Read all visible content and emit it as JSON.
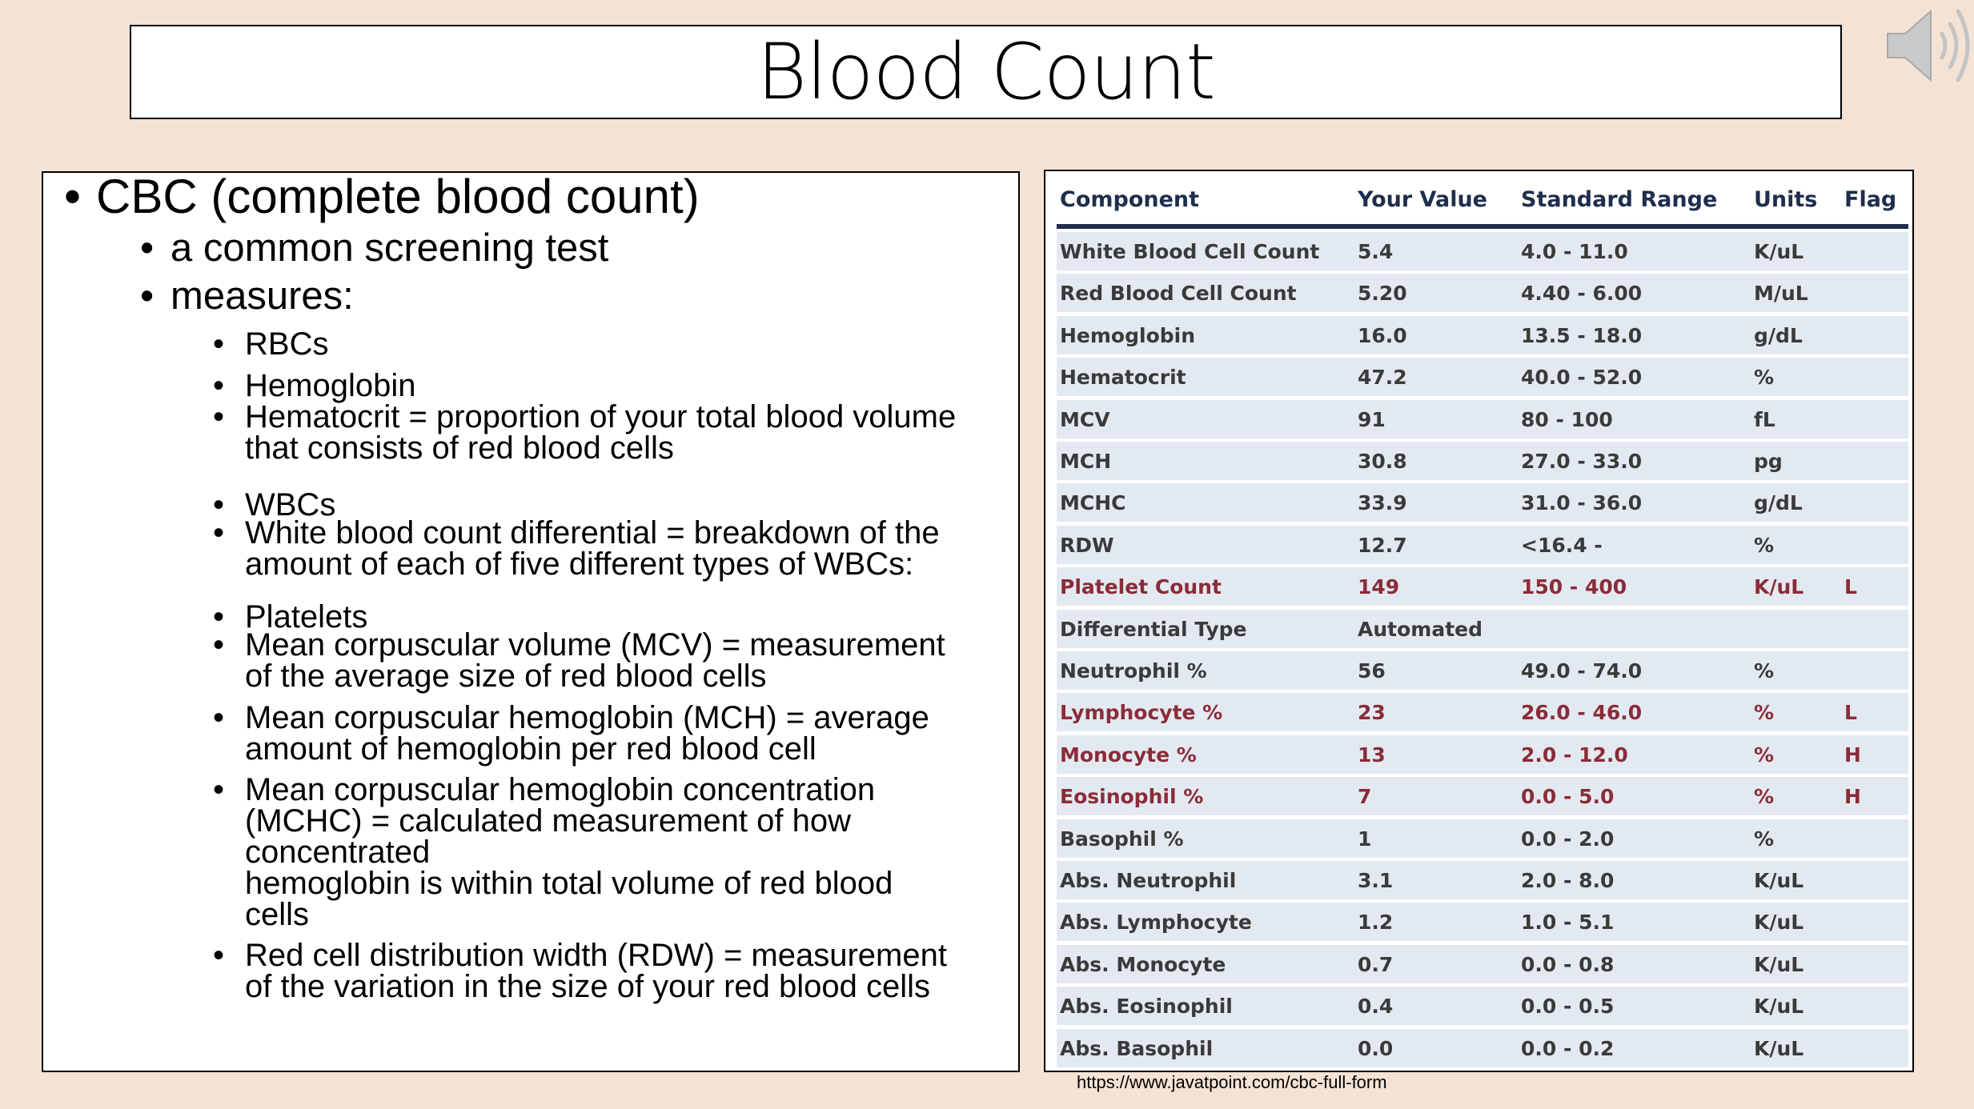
{
  "slide": {
    "title": "Blood Count",
    "source_url": "https://www.javatpoint.com/cbc-full-form",
    "speaker_icon": "speaker-audio-icon",
    "background_color": "#f4e2d4"
  },
  "outline": {
    "bullet": "•",
    "items": [
      {
        "level": 1,
        "lines": [
          "CBC (complete blood count)"
        ]
      },
      {
        "level": 2,
        "lines": [
          " a common screening test"
        ]
      },
      {
        "level": 2,
        "lines": [
          "measures:"
        ]
      },
      {
        "level": 3,
        "lines": [
          "RBCs"
        ]
      },
      {
        "level": 3,
        "lines": [
          "Hemoglobin"
        ]
      },
      {
        "level": 3,
        "lines": [
          "Hematocrit = proportion of your total blood volume",
          "that consists of red blood cells"
        ]
      },
      {
        "level": 3,
        "lines": [
          "WBCs"
        ]
      },
      {
        "level": 3,
        "lines": [
          "White blood count differential = breakdown of the",
          "amount of each of five different types of WBCs:"
        ]
      },
      {
        "level": 3,
        "lines": [
          "Platelets"
        ]
      },
      {
        "level": 3,
        "lines": [
          "Mean corpuscular volume (MCV) = measurement",
          "of the average size of red blood cells"
        ]
      },
      {
        "level": 3,
        "lines": [
          "Mean corpuscular hemoglobin (MCH) =  average",
          "amount of hemoglobin per red blood cell"
        ]
      },
      {
        "level": 3,
        "lines": [
          "Mean corpuscular hemoglobin concentration",
          "(MCHC) = calculated measurement of how",
          "concentrated",
          "hemoglobin is within total volume of red blood",
          "cells"
        ]
      },
      {
        "level": 3,
        "lines": [
          "Red cell distribution width (RDW) = measurement",
          "of the variation in the size of your red blood cells"
        ]
      }
    ]
  },
  "lab_table": {
    "colors": {
      "header": "#1f2e4d",
      "flagged": "#8a2c38",
      "row_bg": "#e3e9f1"
    },
    "columns": [
      "Component",
      "Your Value",
      "Standard Range",
      "Units",
      "Flag"
    ],
    "rows": [
      [
        "White Blood Cell Count",
        "5.4",
        "4.0 - 11.0",
        "K/uL",
        ""
      ],
      [
        "Red Blood Cell Count",
        "5.20",
        "4.40 - 6.00",
        "M/uL",
        ""
      ],
      [
        "Hemoglobin",
        "16.0",
        "13.5 - 18.0",
        "g/dL",
        ""
      ],
      [
        "Hematocrit",
        "47.2",
        "40.0 - 52.0",
        "%",
        ""
      ],
      [
        "MCV",
        "91",
        "80 - 100",
        "fL",
        ""
      ],
      [
        "MCH",
        "30.8",
        "27.0 - 33.0",
        "pg",
        ""
      ],
      [
        "MCHC",
        "33.9",
        "31.0 - 36.0",
        "g/dL",
        ""
      ],
      [
        "RDW",
        "12.7",
        "<16.4 -",
        "%",
        ""
      ],
      [
        "Platelet Count",
        "149",
        "150 - 400",
        "K/uL",
        "L"
      ],
      [
        "Differential Type",
        "Automated",
        "",
        "",
        ""
      ],
      [
        "Neutrophil %",
        "56",
        "49.0 - 74.0",
        "%",
        ""
      ],
      [
        "Lymphocyte %",
        "23",
        "26.0 - 46.0",
        "%",
        "L"
      ],
      [
        "Monocyte %",
        "13",
        "2.0 - 12.0",
        "%",
        "H"
      ],
      [
        "Eosinophil %",
        "7",
        "0.0 - 5.0",
        "%",
        "H"
      ],
      [
        "Basophil %",
        "1",
        "0.0 - 2.0",
        "%",
        ""
      ],
      [
        "Abs. Neutrophil",
        "3.1",
        "2.0 - 8.0",
        "K/uL",
        ""
      ],
      [
        "Abs. Lymphocyte",
        "1.2",
        "1.0 - 5.1",
        "K/uL",
        ""
      ],
      [
        "Abs. Monocyte",
        "0.7",
        "0.0 - 0.8",
        "K/uL",
        ""
      ],
      [
        "Abs. Eosinophil",
        "0.4",
        "0.0 - 0.5",
        "K/uL",
        ""
      ],
      [
        "Abs. Basophil",
        "0.0",
        "0.0 - 0.2",
        "K/uL",
        ""
      ]
    ]
  }
}
